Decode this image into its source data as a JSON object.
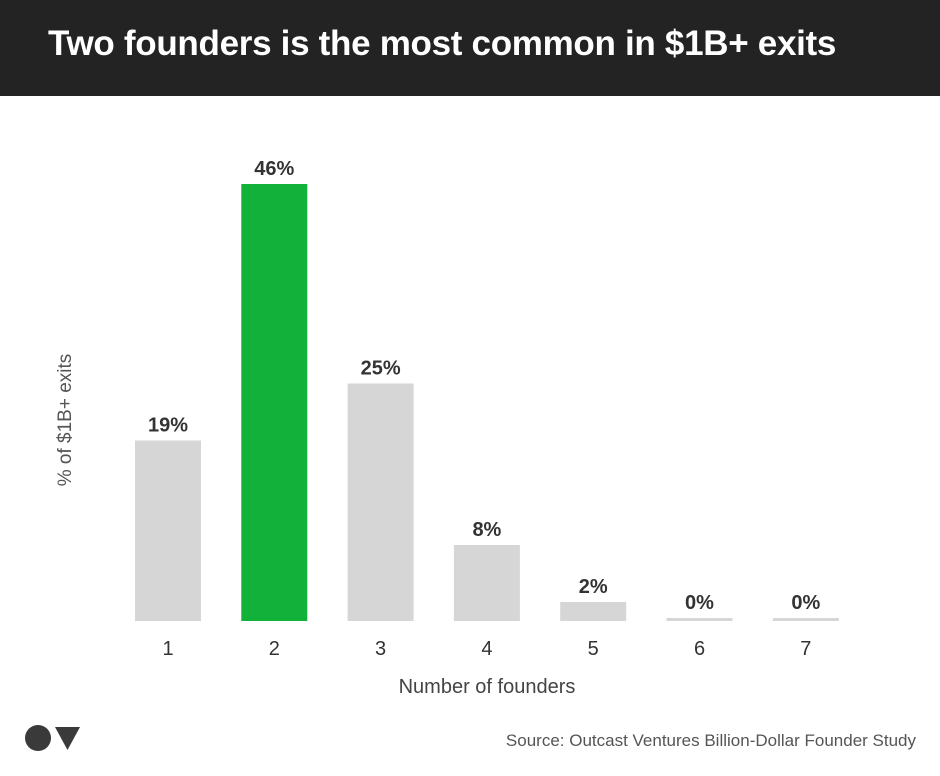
{
  "header": {
    "title": "Two founders is the most common in $1B+ exits"
  },
  "chart_data": {
    "type": "bar",
    "title": "Two founders is the most common in $1B+ exits",
    "xlabel": "Number of founders",
    "ylabel": "% of $1B+ exits",
    "categories": [
      "1",
      "2",
      "3",
      "4",
      "5",
      "6",
      "7"
    ],
    "values": [
      19,
      46,
      25,
      8,
      2,
      0,
      0
    ],
    "data_labels": [
      "19%",
      "46%",
      "25%",
      "8%",
      "2%",
      "0%",
      "0%"
    ],
    "ylim": [
      0,
      46
    ],
    "highlight_index": 1,
    "colors": {
      "highlight": "#12b13a",
      "default": "#d6d6d6"
    },
    "grid": false,
    "legend": "none"
  },
  "footer": {
    "logo_icon": "outcast-ventures-logo-icon",
    "source": "Source: Outcast Ventures Billion-Dollar Founder Study"
  }
}
